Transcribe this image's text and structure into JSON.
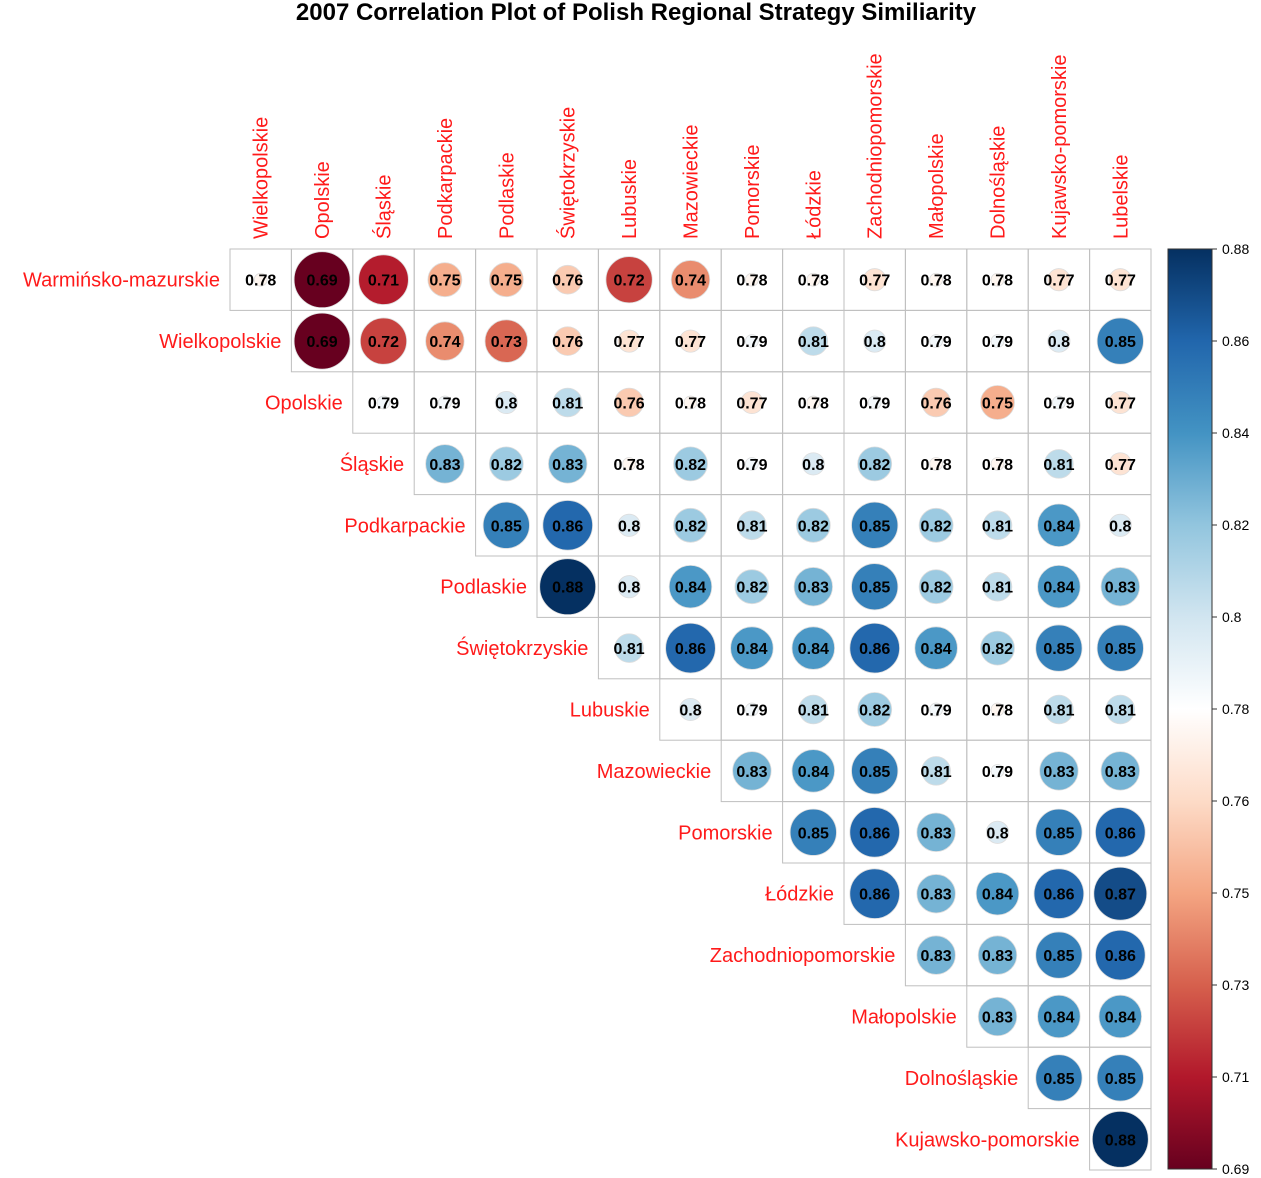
{
  "chart_data": {
    "type": "heatmap",
    "title": "2007 Correlation Plot of Polish Regional Strategy Similiarity",
    "rows": [
      "Warmińsko-mazurskie",
      "Wielkopolskie",
      "Opolskie",
      "Śląskie",
      "Podkarpackie",
      "Podlaskie",
      "Świętokrzyskie",
      "Lubuskie",
      "Mazowieckie",
      "Pomorskie",
      "Łódzkie",
      "Zachodniopomorskie",
      "Małopolskie",
      "Dolnośląskie",
      "Kujawsko-pomorskie"
    ],
    "columns": [
      "Wielkopolskie",
      "Opolskie",
      "Śląskie",
      "Podkarpackie",
      "Podlaskie",
      "Świętokrzyskie",
      "Lubuskie",
      "Mazowieckie",
      "Pomorskie",
      "Łódzkie",
      "Zachodniopomorskie",
      "Małopolskie",
      "Dolnośląskie",
      "Kujawsko-pomorskie",
      "Lubelskie"
    ],
    "values": [
      [
        0.78,
        0.69,
        0.71,
        0.75,
        0.75,
        0.76,
        0.72,
        0.74,
        0.78,
        0.78,
        0.77,
        0.78,
        0.78,
        0.77,
        0.77
      ],
      [
        0.69,
        0.72,
        0.74,
        0.73,
        0.76,
        0.77,
        0.77,
        0.79,
        0.81,
        0.8,
        0.79,
        0.79,
        0.8,
        0.85
      ],
      [
        0.79,
        0.79,
        0.8,
        0.81,
        0.76,
        0.78,
        0.77,
        0.78,
        0.79,
        0.76,
        0.75,
        0.79,
        0.77
      ],
      [
        0.83,
        0.82,
        0.83,
        0.78,
        0.82,
        0.79,
        0.8,
        0.82,
        0.78,
        0.78,
        0.81,
        0.77
      ],
      [
        0.85,
        0.86,
        0.8,
        0.82,
        0.81,
        0.82,
        0.85,
        0.82,
        0.81,
        0.84,
        0.8
      ],
      [
        0.88,
        0.8,
        0.84,
        0.82,
        0.83,
        0.85,
        0.82,
        0.81,
        0.84,
        0.83
      ],
      [
        0.81,
        0.86,
        0.84,
        0.84,
        0.86,
        0.84,
        0.82,
        0.85,
        0.85
      ],
      [
        0.8,
        0.79,
        0.81,
        0.82,
        0.79,
        0.78,
        0.81,
        0.81
      ],
      [
        0.83,
        0.84,
        0.85,
        0.81,
        0.79,
        0.83,
        0.83
      ],
      [
        0.85,
        0.86,
        0.83,
        0.8,
        0.85,
        0.86
      ],
      [
        0.86,
        0.83,
        0.84,
        0.86,
        0.87
      ],
      [
        0.83,
        0.83,
        0.85,
        0.86
      ],
      [
        0.83,
        0.84,
        0.84
      ],
      [
        0.85,
        0.85
      ],
      [
        0.88
      ]
    ],
    "color_scale": {
      "min": 0.69,
      "max": 0.88,
      "ticks": [
        "0.88",
        "0.86",
        "0.84",
        "0.82",
        "0.8",
        "0.78",
        "0.76",
        "0.75",
        "0.73",
        "0.71",
        "0.69"
      ],
      "colors": [
        "#67001f",
        "#b2182b",
        "#d6604d",
        "#f4a582",
        "#fddbc7",
        "#ffffff",
        "#d1e5f0",
        "#92c5de",
        "#4393c3",
        "#2166ac",
        "#053061"
      ]
    },
    "legend": "right",
    "grid": true
  },
  "colors": {
    "label": "#ff1a1a",
    "grid": "#bfbfbf",
    "text": "#000000"
  }
}
